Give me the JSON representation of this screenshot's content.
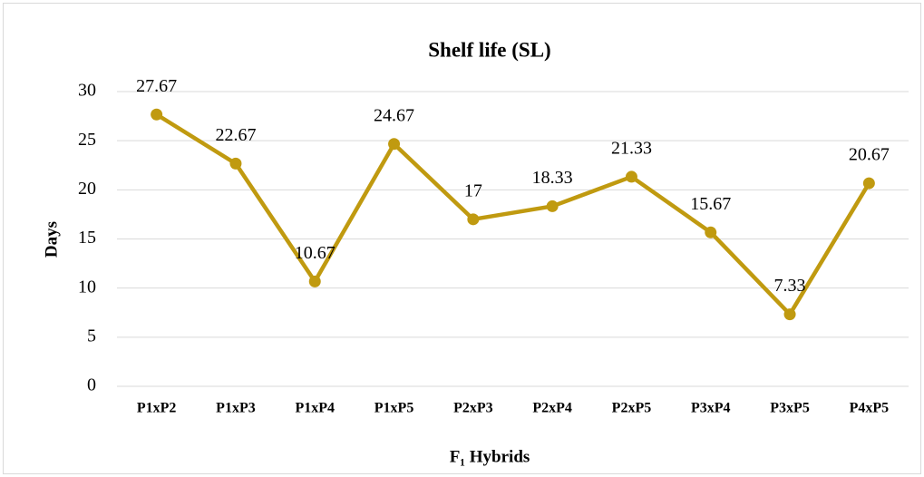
{
  "chart_data": {
    "type": "line",
    "title": "Shelf life (SL)",
    "x_label": "F₁ Hybrids",
    "y_label": "Days",
    "categories": [
      "P1xP2",
      "P1xP3",
      "P1xP4",
      "P1xP5",
      "P2xP3",
      "P2xP4",
      "P2xP5",
      "P3xP4",
      "P3xP5",
      "P4xP5"
    ],
    "values": [
      27.67,
      22.67,
      10.67,
      24.67,
      17,
      18.33,
      21.33,
      15.67,
      7.33,
      20.67
    ],
    "color": "#c09a10",
    "ylim": [
      0,
      30
    ],
    "yticks": [
      0,
      5,
      10,
      15,
      20,
      25,
      30
    ],
    "grid": true
  }
}
